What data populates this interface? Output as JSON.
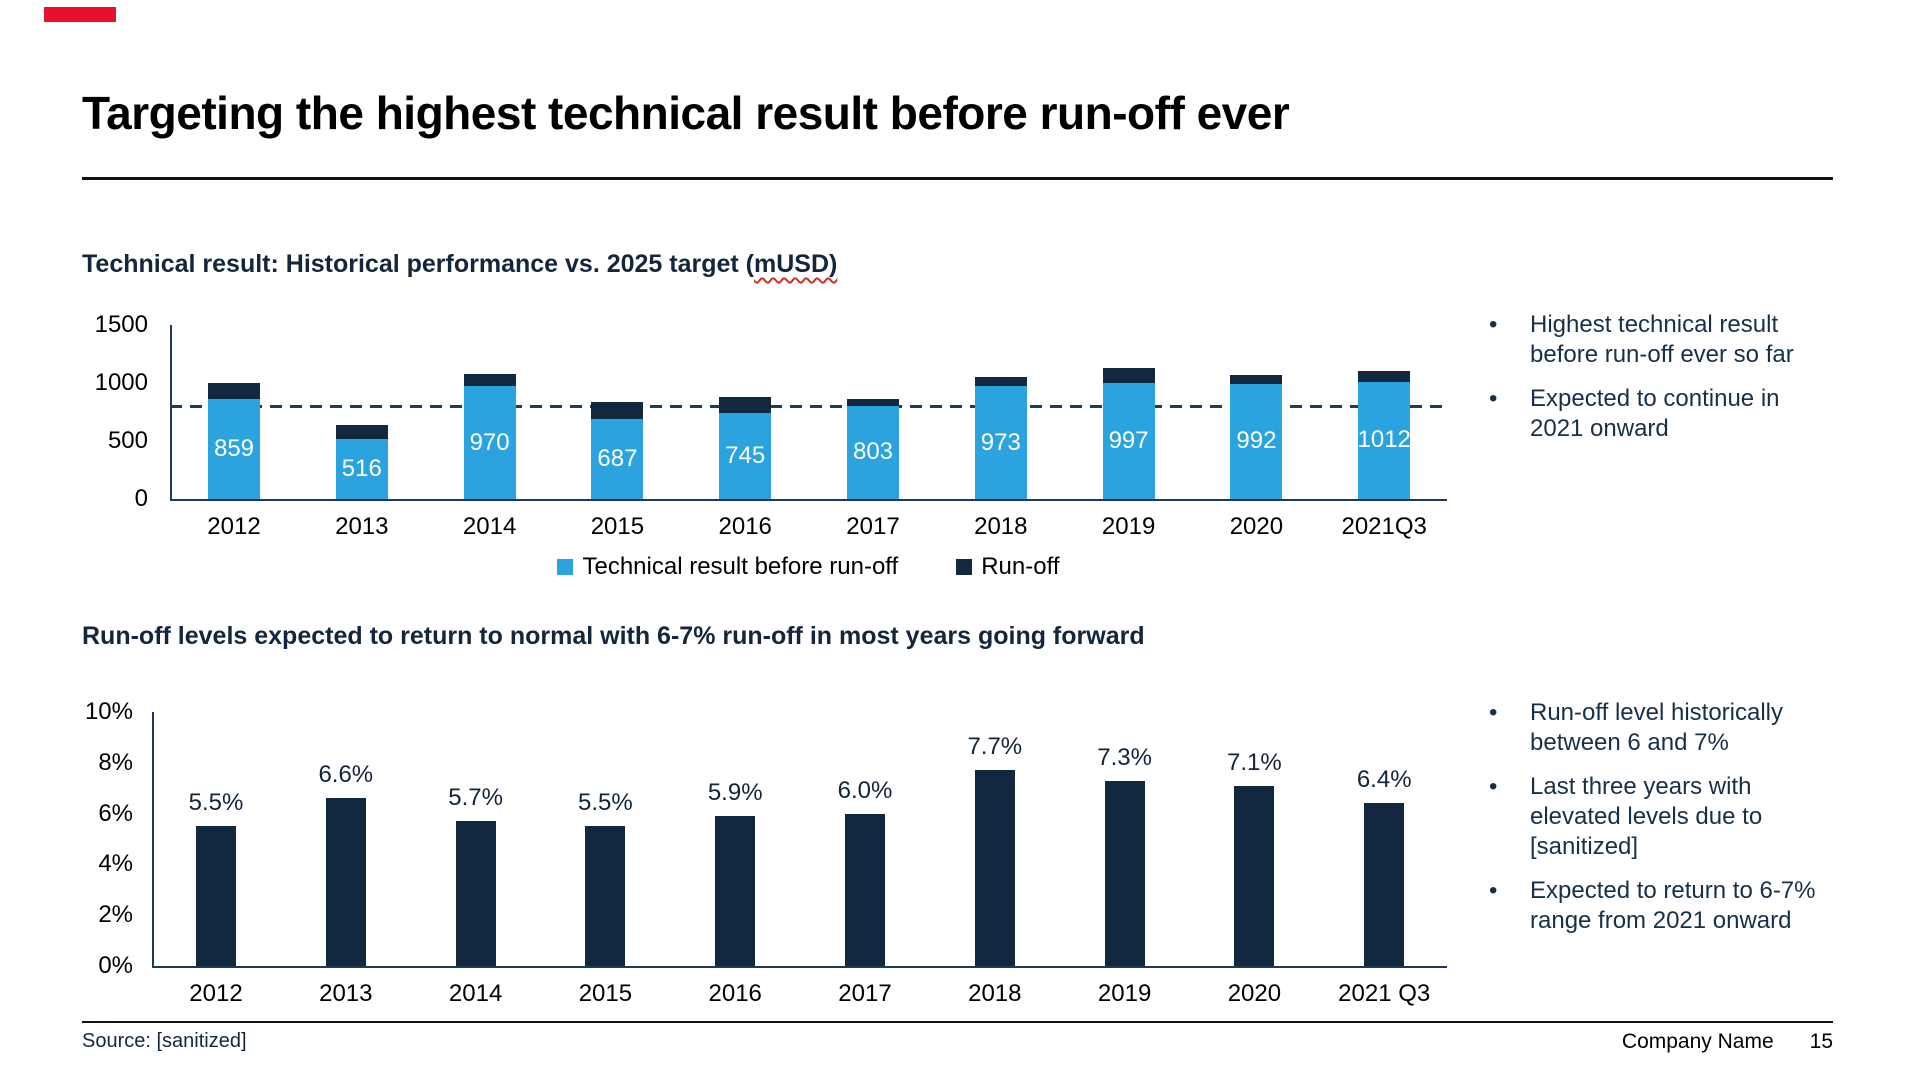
{
  "slide": {
    "title": "Targeting the highest technical result before run-off ever",
    "source": "Source: [sanitized]",
    "company_name": "Company Name",
    "page_number": "15"
  },
  "sections": {
    "top": {
      "heading_prefix": "Technical result: Historical performance vs. 2025 target (",
      "heading_unit": "mUSD)",
      "bullets": [
        "Highest technical result before run-off ever so far",
        "Expected to continue in 2021 onward"
      ]
    },
    "bottom": {
      "heading": "Run-off levels expected to return to normal with 6-7% run-off in most years going forward",
      "bullets": [
        "Run-off level historically between 6 and 7%",
        "Last three years with elevated levels due to [sanitized]",
        "Expected to return to 6-7% range from 2021 onward"
      ]
    }
  },
  "colors": {
    "blue": "#2AA3DE",
    "navy": "#12283E",
    "dashed_line": "#1E3C5C",
    "axis": "#1D3A5A",
    "heading_navy": "#14263C",
    "bullet_navy": "#17304A",
    "red_mark": "#E8112D"
  },
  "chart_data": [
    {
      "type": "bar",
      "stacked": true,
      "title": "Technical result: Historical performance vs. 2025 target (mUSD)",
      "categories": [
        "2012",
        "2013",
        "2014",
        "2015",
        "2016",
        "2017",
        "2018",
        "2019",
        "2020",
        "2021Q3"
      ],
      "series": [
        {
          "name": "Technical result before run-off",
          "color": "#2AA3DE",
          "values": [
            859,
            516,
            970,
            687,
            745,
            803,
            973,
            997,
            992,
            1012
          ],
          "labels_shown": true
        },
        {
          "name": "Run-off",
          "color": "#12283E",
          "values": [
            145,
            120,
            105,
            145,
            135,
            60,
            75,
            135,
            75,
            90
          ],
          "labels_shown": false,
          "note": "segment sizes estimated from pixels; not labeled on chart"
        }
      ],
      "target_line": {
        "value": 800,
        "style": "dashed"
      },
      "ylim": [
        0,
        1500
      ],
      "yticks": [
        0,
        500,
        1000,
        1500
      ],
      "grid": false,
      "legend_position": "bottom"
    },
    {
      "type": "bar",
      "title": "Run-off levels expected to return to normal with 6-7% run-off in most years going forward",
      "categories": [
        "2012",
        "2013",
        "2014",
        "2015",
        "2016",
        "2017",
        "2018",
        "2019",
        "2020",
        "2021 Q3"
      ],
      "values": [
        5.5,
        6.6,
        5.7,
        5.5,
        5.9,
        6.0,
        7.7,
        7.3,
        7.1,
        6.4
      ],
      "bar_labels": [
        "5.5%",
        "6.6%",
        "5.7%",
        "5.5%",
        "5.9%",
        "6.0%",
        "7.7%",
        "7.3%",
        "7.1%",
        "6.4%"
      ],
      "ylim": [
        0,
        10
      ],
      "yticks": [
        0,
        2,
        4,
        6,
        8,
        10
      ],
      "ytick_labels": [
        "0%",
        "2%",
        "4%",
        "6%",
        "8%",
        "10%"
      ],
      "color": "#12283E",
      "grid": false,
      "legend_position": "none"
    }
  ]
}
